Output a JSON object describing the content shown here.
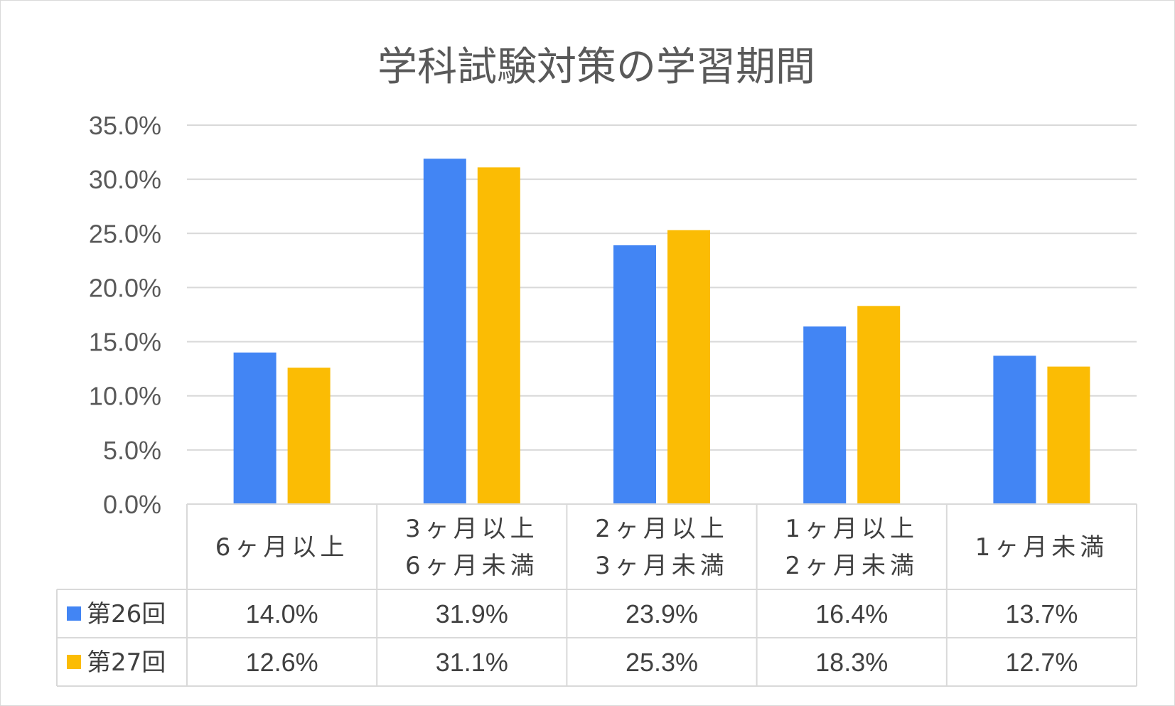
{
  "chart_data": {
    "type": "bar",
    "title": "学科試験対策の学習期間",
    "categories": [
      "6ヶ月以上",
      "3ヶ月以上\n6ヶ月未満",
      "2ヶ月以上\n3ヶ月未満",
      "1ヶ月以上\n2ヶ月未満",
      "1ヶ月未満"
    ],
    "series": [
      {
        "name": "第26回",
        "color": "#4285F4",
        "values": [
          14.0,
          31.9,
          23.9,
          16.4,
          13.7
        ],
        "labels": [
          "14.0%",
          "31.9%",
          "23.9%",
          "16.4%",
          "13.7%"
        ]
      },
      {
        "name": "第27回",
        "color": "#FBBC04",
        "values": [
          12.6,
          31.1,
          25.3,
          18.3,
          12.7
        ],
        "labels": [
          "12.6%",
          "31.1%",
          "25.3%",
          "18.3%",
          "12.7%"
        ]
      }
    ],
    "ylim": [
      0,
      35
    ],
    "y_ticks": [
      "0.0%",
      "5.0%",
      "10.0%",
      "15.0%",
      "20.0%",
      "25.0%",
      "30.0%",
      "35.0%"
    ],
    "xlabel": "",
    "ylabel": "",
    "grid": true,
    "legend": "data-table-left",
    "colors": {
      "gridline": "#d9d9d9",
      "text": "#595959"
    }
  }
}
